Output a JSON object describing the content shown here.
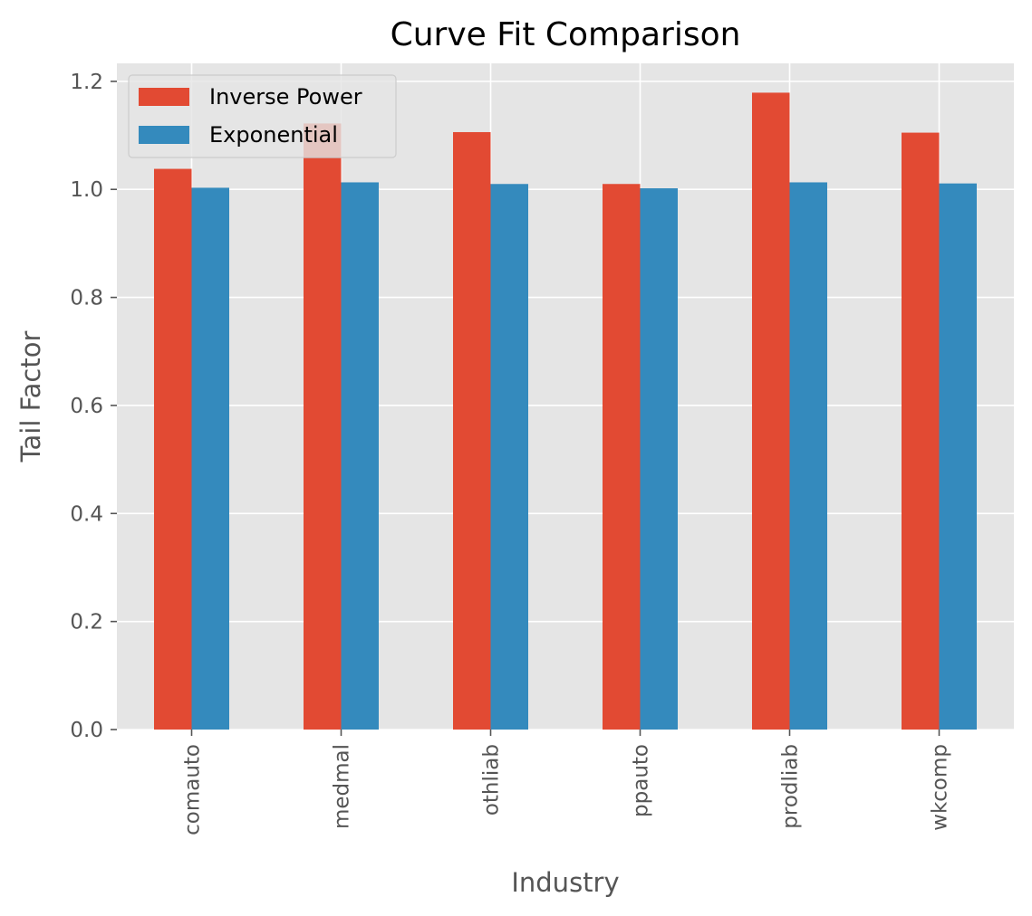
{
  "chart_data": {
    "type": "bar",
    "title": "Curve Fit Comparison",
    "xlabel": "Industry",
    "ylabel": "Tail Factor",
    "categories": [
      "comauto",
      "medmal",
      "othliab",
      "ppauto",
      "prodliab",
      "wkcomp"
    ],
    "series": [
      {
        "name": "Inverse Power",
        "color": "#E24A33",
        "values": [
          1.038,
          1.122,
          1.106,
          1.01,
          1.179,
          1.105
        ]
      },
      {
        "name": "Exponential",
        "color": "#348ABD",
        "values": [
          1.003,
          1.013,
          1.01,
          1.002,
          1.013,
          1.011
        ]
      }
    ],
    "ylim": [
      0,
      1.2333
    ],
    "yticks": [
      0.0,
      0.2,
      0.4,
      0.6,
      0.8,
      1.0,
      1.2
    ],
    "ytick_labels": [
      "0.0",
      "0.2",
      "0.4",
      "0.6",
      "0.8",
      "1.0",
      "1.2"
    ],
    "grid": true,
    "legend_position": "top-left",
    "background_color": "#E5E5E5",
    "grid_color": "#FFFFFF"
  }
}
